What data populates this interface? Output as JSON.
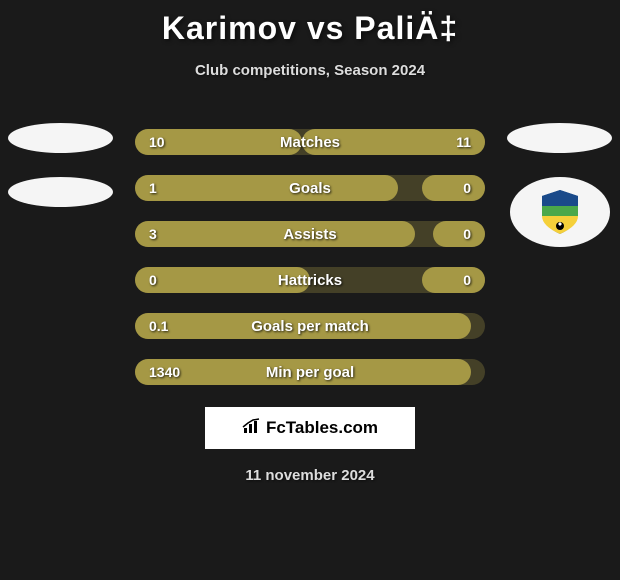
{
  "title": "Karimov vs PaliÄ‡",
  "subtitle": "Club competitions, Season 2024",
  "footer_date": "11 november 2024",
  "footer_logo_text": "FcTables.com",
  "bar_track_width": 350,
  "bar_color": "#a59845",
  "bar_track_color": "rgba(165, 152, 69, 0.3)",
  "background_color": "#1a1a1a",
  "text_color": "#ffffff",
  "title_fontsize": 32,
  "subtitle_fontsize": 15,
  "label_fontsize": 15,
  "value_fontsize": 14,
  "stats": [
    {
      "label": "Matches",
      "left_value": "10",
      "right_value": "11",
      "left_pct": 47.6,
      "right_pct": 52.4
    },
    {
      "label": "Goals",
      "left_value": "1",
      "right_value": "0",
      "left_pct": 75,
      "right_pct": 18
    },
    {
      "label": "Assists",
      "left_value": "3",
      "right_value": "0",
      "left_pct": 80,
      "right_pct": 15
    },
    {
      "label": "Hattricks",
      "left_value": "0",
      "right_value": "0",
      "left_pct": 50,
      "right_pct": 18
    },
    {
      "label": "Goals per match",
      "left_value": "0.1",
      "right_value": "",
      "left_pct": 96,
      "right_pct": 0
    },
    {
      "label": "Min per goal",
      "left_value": "1340",
      "right_value": "",
      "left_pct": 96,
      "right_pct": 0
    }
  ],
  "badge_colors": {
    "top": "#1a4a8a",
    "mid": "#4aa84a",
    "bottom": "#f5d03a"
  }
}
